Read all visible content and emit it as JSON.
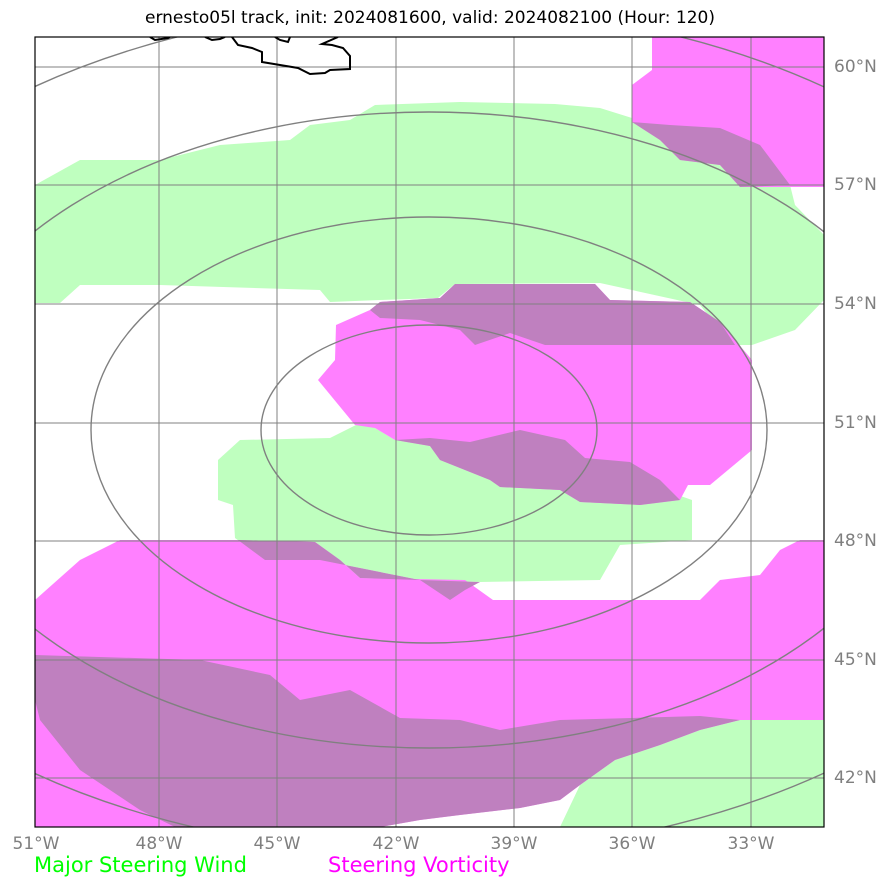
{
  "title": "ernesto05l track, init: 2024081600, valid: 2024082100 (Hour: 120)",
  "lon_labels": [
    "51°W",
    "48°W",
    "45°W",
    "42°W",
    "39°W",
    "36°W",
    "33°W"
  ],
  "lat_labels": [
    "60°N",
    "57°N",
    "54°N",
    "51°N",
    "48°N",
    "45°N",
    "42°N"
  ],
  "legend": {
    "wind_label": "Major Steering Wind",
    "vorticity_label": "Steering Vorticity"
  },
  "colors": {
    "wind_fill": "#bfffbf",
    "vorticity_fill": "#ff80ff",
    "overlap_fill": "#bf80bf",
    "gridline": "#808080",
    "range_rings": "#808080",
    "coastline": "#000000",
    "wind_text": "#00ff00",
    "vorticity_text": "#ff00ff"
  }
}
